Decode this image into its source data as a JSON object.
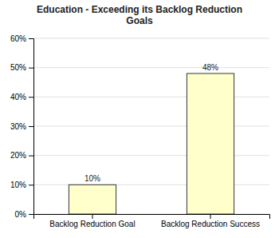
{
  "chart_data": {
    "type": "bar",
    "title": "Education - Exceeding its Backlog Reduction\nGoals",
    "categories": [
      "Backlog Reduction Goal",
      "Backlog Reduction Success"
    ],
    "values": [
      10,
      48
    ],
    "value_labels": [
      "10%",
      "48%"
    ],
    "data_labels": true,
    "color": "#ffffcc",
    "ylim": [
      0,
      60
    ],
    "yticks": [
      {
        "value": 0,
        "label": "0%"
      },
      {
        "value": 10,
        "label": "10%"
      },
      {
        "value": 20,
        "label": "20%"
      },
      {
        "value": 30,
        "label": "30%"
      },
      {
        "value": 40,
        "label": "40%"
      },
      {
        "value": 50,
        "label": "50%"
      },
      {
        "value": 60,
        "label": "60%"
      }
    ],
    "grid": true
  }
}
